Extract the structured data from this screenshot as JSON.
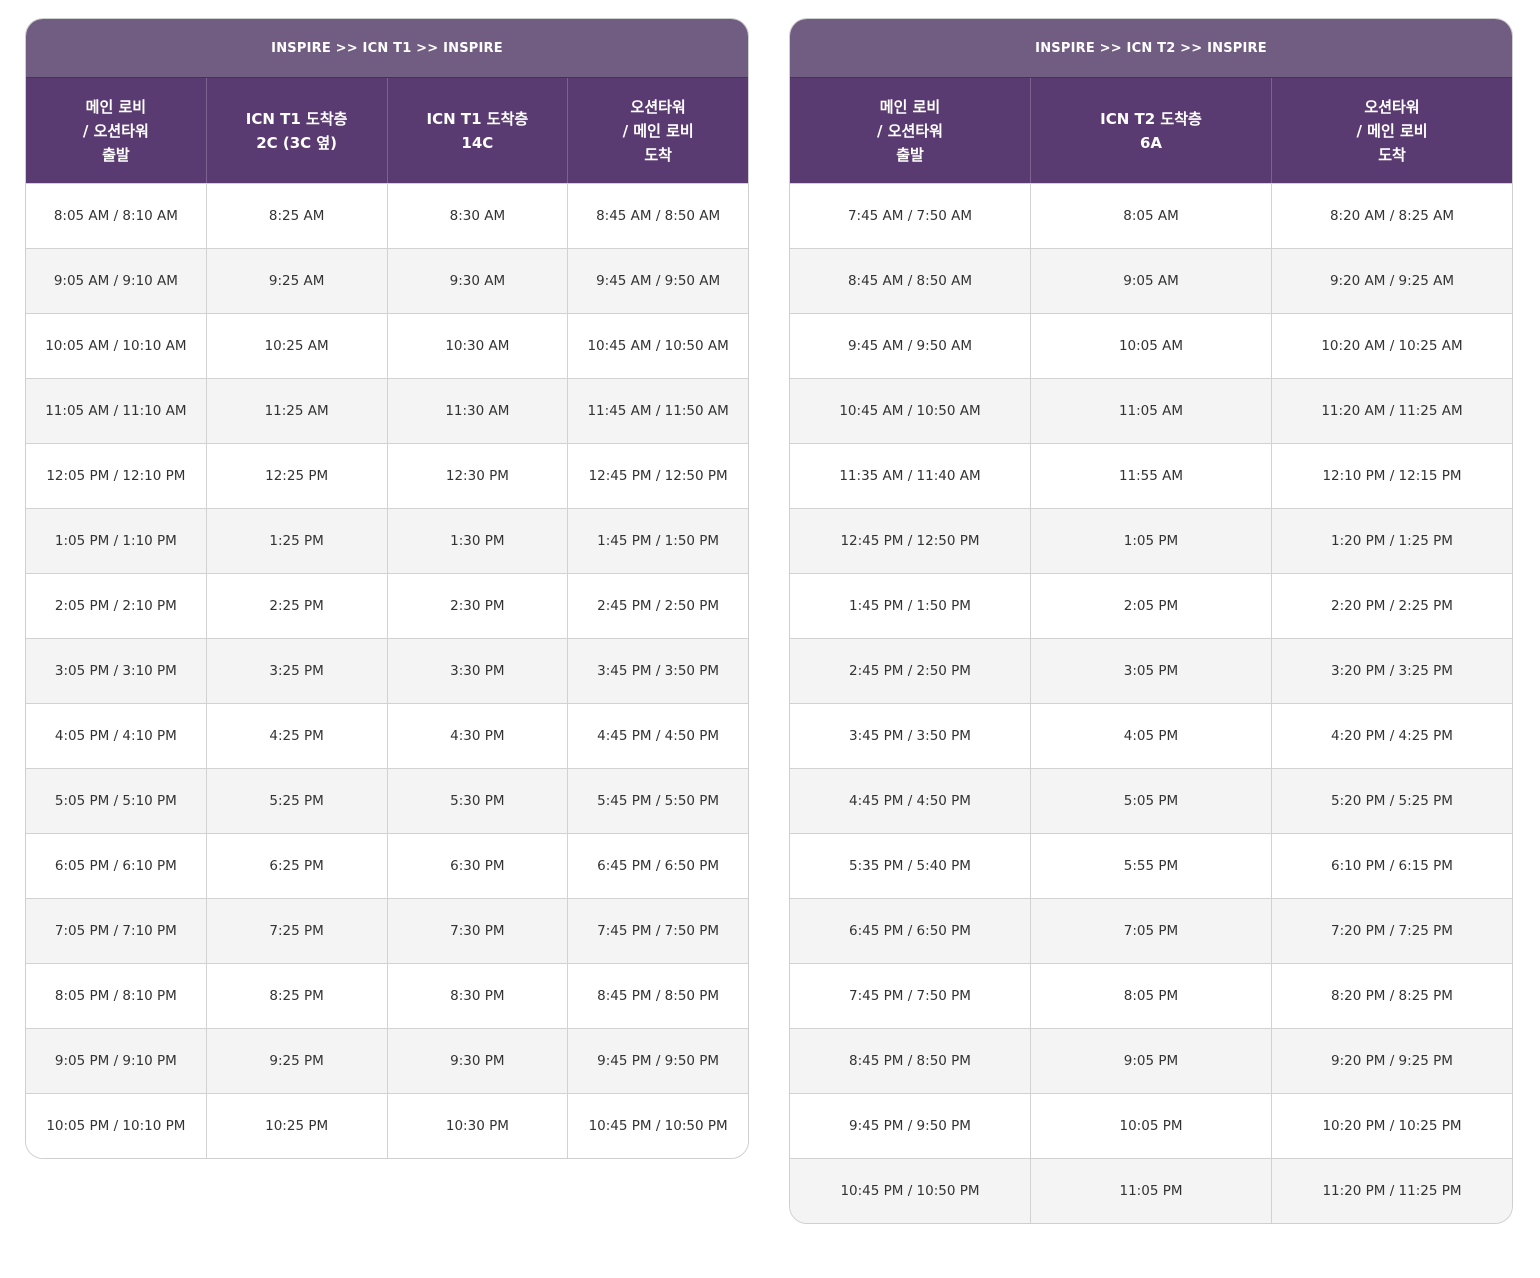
{
  "tables": [
    {
      "title": "INSPIRE >> ICN T1 >> INSPIRE",
      "headers": [
        "메인 로비\n/ 오션타워\n출발",
        "ICN T1 도착층\n2C (3C 옆)",
        "ICN T1 도착층\n14C",
        "오션타워\n/ 메인 로비\n도착"
      ],
      "rows": [
        [
          "8:05 AM / 8:10 AM",
          "8:25 AM",
          "8:30 AM",
          "8:45 AM / 8:50 AM"
        ],
        [
          "9:05 AM / 9:10 AM",
          "9:25 AM",
          "9:30 AM",
          "9:45 AM / 9:50 AM"
        ],
        [
          "10:05 AM / 10:10 AM",
          "10:25 AM",
          "10:30 AM",
          "10:45 AM / 10:50 AM"
        ],
        [
          "11:05 AM / 11:10 AM",
          "11:25 AM",
          "11:30 AM",
          "11:45 AM / 11:50 AM"
        ],
        [
          "12:05 PM / 12:10 PM",
          "12:25 PM",
          "12:30 PM",
          "12:45 PM / 12:50 PM"
        ],
        [
          "1:05 PM / 1:10 PM",
          "1:25 PM",
          "1:30 PM",
          "1:45 PM / 1:50 PM"
        ],
        [
          "2:05 PM / 2:10 PM",
          "2:25 PM",
          "2:30 PM",
          "2:45 PM / 2:50 PM"
        ],
        [
          "3:05 PM / 3:10 PM",
          "3:25 PM",
          "3:30 PM",
          "3:45 PM / 3:50 PM"
        ],
        [
          "4:05 PM / 4:10 PM",
          "4:25 PM",
          "4:30 PM",
          "4:45 PM / 4:50 PM"
        ],
        [
          "5:05 PM / 5:10 PM",
          "5:25 PM",
          "5:30 PM",
          "5:45 PM / 5:50 PM"
        ],
        [
          "6:05 PM / 6:10 PM",
          "6:25 PM",
          "6:30 PM",
          "6:45 PM / 6:50 PM"
        ],
        [
          "7:05 PM / 7:10 PM",
          "7:25 PM",
          "7:30 PM",
          "7:45 PM / 7:50 PM"
        ],
        [
          "8:05 PM / 8:10 PM",
          "8:25 PM",
          "8:30 PM",
          "8:45 PM / 8:50 PM"
        ],
        [
          "9:05 PM / 9:10 PM",
          "9:25 PM",
          "9:30 PM",
          "9:45 PM / 9:50 PM"
        ],
        [
          "10:05 PM / 10:10 PM",
          "10:25 PM",
          "10:30 PM",
          "10:45 PM / 10:50 PM"
        ]
      ]
    },
    {
      "title": "INSPIRE >> ICN T2 >> INSPIRE",
      "headers": [
        "메인 로비\n/ 오션타워\n출발",
        "ICN T2 도착층\n6A",
        "오션타워\n/ 메인 로비\n도착"
      ],
      "rows": [
        [
          "7:45 AM / 7:50 AM",
          "8:05 AM",
          "8:20 AM / 8:25 AM"
        ],
        [
          "8:45 AM / 8:50 AM",
          "9:05 AM",
          "9:20 AM / 9:25 AM"
        ],
        [
          "9:45 AM / 9:50 AM",
          "10:05 AM",
          "10:20 AM / 10:25 AM"
        ],
        [
          "10:45 AM / 10:50 AM",
          "11:05 AM",
          "11:20 AM / 11:25 AM"
        ],
        [
          "11:35 AM / 11:40 AM",
          "11:55 AM",
          "12:10 PM / 12:15 PM"
        ],
        [
          "12:45 PM / 12:50 PM",
          "1:05 PM",
          "1:20 PM / 1:25 PM"
        ],
        [
          "1:45 PM / 1:50 PM",
          "2:05 PM",
          "2:20 PM / 2:25 PM"
        ],
        [
          "2:45 PM / 2:50 PM",
          "3:05 PM",
          "3:20 PM / 3:25 PM"
        ],
        [
          "3:45 PM / 3:50 PM",
          "4:05 PM",
          "4:20 PM / 4:25 PM"
        ],
        [
          "4:45 PM / 4:50 PM",
          "5:05 PM",
          "5:20 PM / 5:25 PM"
        ],
        [
          "5:35 PM / 5:40 PM",
          "5:55 PM",
          "6:10 PM / 6:15 PM"
        ],
        [
          "6:45 PM / 6:50 PM",
          "7:05 PM",
          "7:20 PM / 7:25 PM"
        ],
        [
          "7:45 PM / 7:50 PM",
          "8:05 PM",
          "8:20 PM / 8:25 PM"
        ],
        [
          "8:45 PM / 8:50 PM",
          "9:05 PM",
          "9:20 PM / 9:25 PM"
        ],
        [
          "9:45 PM / 9:50 PM",
          "10:05 PM",
          "10:20 PM / 10:25 PM"
        ],
        [
          "10:45 PM / 10:50 PM",
          "11:05 PM",
          "11:20 PM / 11:25 PM"
        ]
      ]
    }
  ],
  "colors": {
    "title_bar": "#715d82",
    "header_row": "#5a3b71",
    "row_alt": "#f4f4f4",
    "border": "#d2d2d2"
  }
}
